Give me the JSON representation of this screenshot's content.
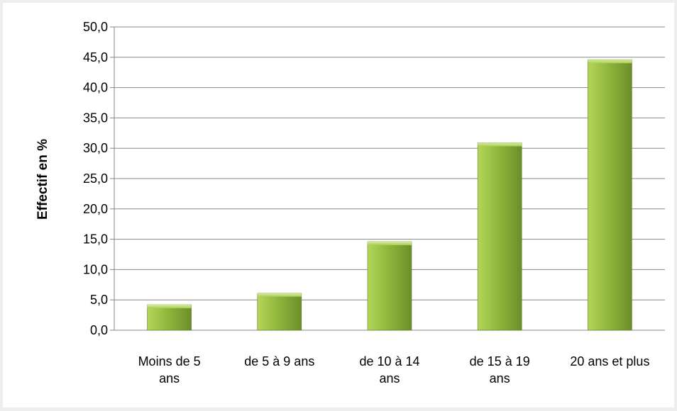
{
  "chart_data": {
    "type": "bar",
    "title": "",
    "xlabel": "",
    "ylabel": "Effectif en %",
    "ylim": [
      0,
      50
    ],
    "yticks": [
      "0,0",
      "5,0",
      "10,0",
      "15,0",
      "20,0",
      "25,0",
      "30,0",
      "35,0",
      "40,0",
      "45,0",
      "50,0"
    ],
    "grid": true,
    "legend": "none",
    "categories": [
      [
        "Moins de 5",
        "ans"
      ],
      [
        "de 5 à 9 ans"
      ],
      [
        "de 10 à 14",
        "ans"
      ],
      [
        "de 15 à 19",
        "ans"
      ],
      [
        "20 ans et plus"
      ]
    ],
    "values": [
      4.2,
      6.1,
      14.6,
      30.9,
      44.6
    ],
    "colors": {
      "bar_light": "#b4d65a",
      "bar_mid": "#8fb83c",
      "bar_dark": "#6b8e2a",
      "grid": "#888888",
      "background": "#ffffff",
      "frame": "#eeeeee"
    }
  }
}
